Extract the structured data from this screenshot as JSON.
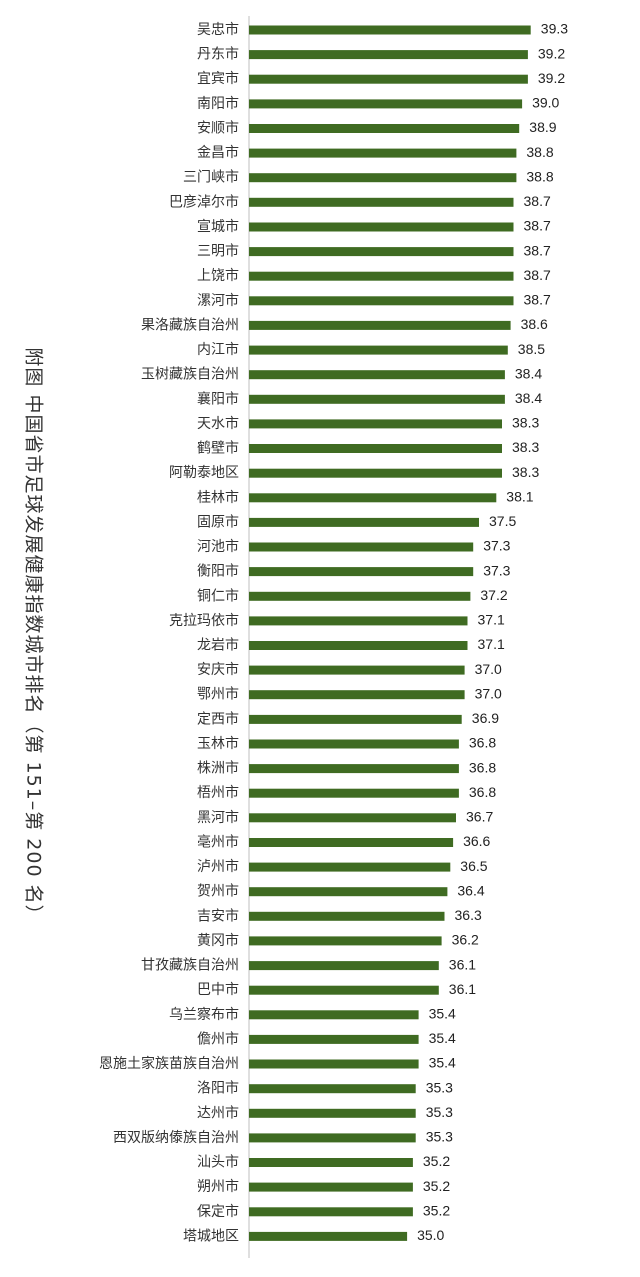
{
  "colors": {
    "bar": "#3f6b22",
    "axis": "#bfbfbf",
    "text": "#333333"
  },
  "chart_data": {
    "type": "bar",
    "orientation": "horizontal",
    "title": "附图 中国省市足球发展健康指数城市排名（第 151–第 200 名）",
    "xlabel": "",
    "ylabel": "",
    "xlim": [
      29.5,
      40.5
    ],
    "grid": false,
    "categories": [
      "吴忠市",
      "丹东市",
      "宜宾市",
      "南阳市",
      "安顺市",
      "金昌市",
      "三门峡市",
      "巴彦淖尔市",
      "宣城市",
      "三明市",
      "上饶市",
      "漯河市",
      "果洛藏族自治州",
      "内江市",
      "玉树藏族自治州",
      "襄阳市",
      "天水市",
      "鹤壁市",
      "阿勒泰地区",
      "桂林市",
      "固原市",
      "河池市",
      "衡阳市",
      "铜仁市",
      "克拉玛依市",
      "龙岩市",
      "安庆市",
      "鄂州市",
      "定西市",
      "玉林市",
      "株洲市",
      "梧州市",
      "黑河市",
      "亳州市",
      "泸州市",
      "贺州市",
      "吉安市",
      "黄冈市",
      "甘孜藏族自治州",
      "巴中市",
      "乌兰察布市",
      "儋州市",
      "恩施土家族苗族自治州",
      "洛阳市",
      "达州市",
      "西双版纳傣族自治州",
      "汕头市",
      "朔州市",
      "保定市",
      "塔城地区"
    ],
    "values": [
      39.3,
      39.2,
      39.2,
      39.0,
      38.9,
      38.8,
      38.8,
      38.7,
      38.7,
      38.7,
      38.7,
      38.7,
      38.6,
      38.5,
      38.4,
      38.4,
      38.3,
      38.3,
      38.3,
      38.1,
      37.5,
      37.3,
      37.3,
      37.2,
      37.1,
      37.1,
      37.0,
      37.0,
      36.9,
      36.8,
      36.8,
      36.8,
      36.7,
      36.6,
      36.5,
      36.4,
      36.3,
      36.2,
      36.1,
      36.1,
      35.4,
      35.4,
      35.4,
      35.3,
      35.3,
      35.3,
      35.2,
      35.2,
      35.2,
      35.0
    ],
    "value_labels": [
      "39.3",
      "39.2",
      "39.2",
      "39.0",
      "38.9",
      "38.8",
      "38.8",
      "38.7",
      "38.7",
      "38.7",
      "38.7",
      "38.7",
      "38.6",
      "38.5",
      "38.4",
      "38.4",
      "38.3",
      "38.3",
      "38.3",
      "38.1",
      "37.5",
      "37.3",
      "37.3",
      "37.2",
      "37.1",
      "37.1",
      "37.0",
      "37.0",
      "36.9",
      "36.8",
      "36.8",
      "36.8",
      "36.7",
      "36.6",
      "36.5",
      "36.4",
      "36.3",
      "36.2",
      "36.1",
      "36.1",
      "35.4",
      "35.4",
      "35.4",
      "35.3",
      "35.3",
      "35.3",
      "35.2",
      "35.2",
      "35.2",
      "35.0"
    ]
  }
}
